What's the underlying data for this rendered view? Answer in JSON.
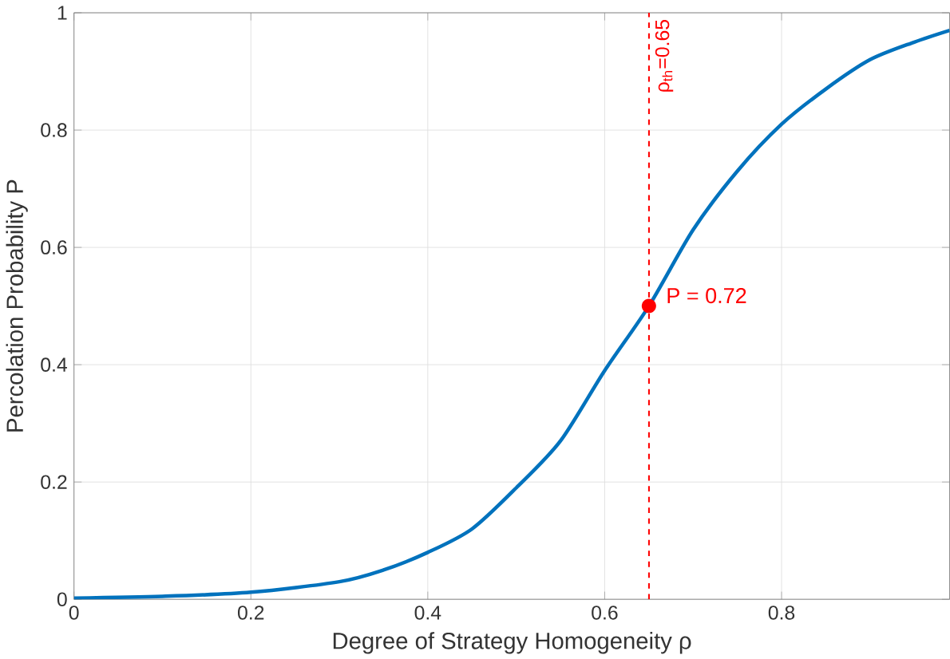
{
  "chart_data": {
    "type": "line",
    "xlabel": "Degree of Strategy Homogeneity ρ",
    "ylabel": "Percolation Probability P",
    "xlim": [
      0,
      0.99
    ],
    "ylim": [
      0,
      1
    ],
    "xticks": [
      0,
      0.2,
      0.4,
      0.6,
      0.8
    ],
    "yticks": [
      0,
      0.2,
      0.4,
      0.6,
      0.8,
      1
    ],
    "grid": true,
    "series": [
      {
        "type": "line",
        "color": "#0072bd",
        "x": [
          0,
          0.1,
          0.2,
          0.3,
          0.35,
          0.4,
          0.45,
          0.5,
          0.55,
          0.6,
          0.65,
          0.7,
          0.75,
          0.8,
          0.85,
          0.9,
          0.95,
          0.99
        ],
        "values": [
          0.002,
          0.005,
          0.012,
          0.03,
          0.05,
          0.08,
          0.12,
          0.19,
          0.27,
          0.39,
          0.5,
          0.63,
          0.73,
          0.81,
          0.87,
          0.92,
          0.95,
          0.97
        ]
      },
      {
        "type": "scatter",
        "color": "#ff0000",
        "marker": "circle",
        "x": [
          0.65
        ],
        "values": [
          0.5
        ]
      }
    ],
    "ref_lines": [
      {
        "axis": "x",
        "value": 0.65,
        "label": "ρ$_{th}$=0.65",
        "color": "#ff0000",
        "line_style": "dashed"
      }
    ],
    "annotations": [
      {
        "text": "P = 0.72",
        "x": 0.65,
        "y": 0.5
      }
    ]
  }
}
